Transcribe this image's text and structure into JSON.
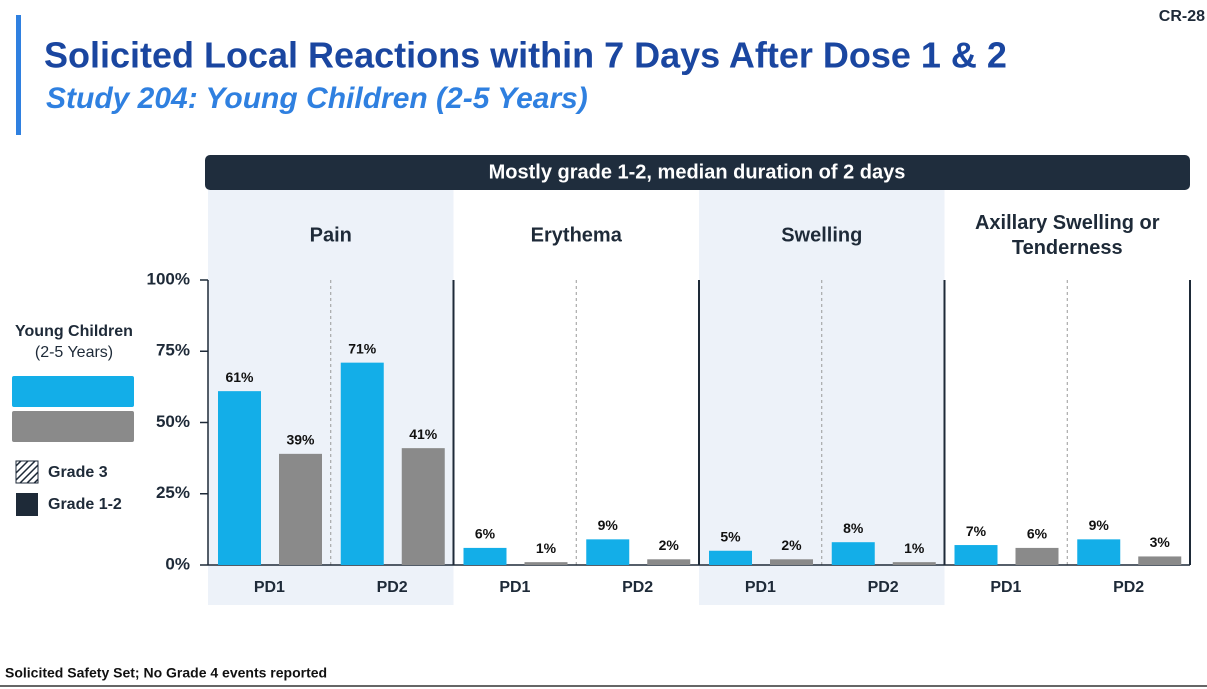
{
  "page_id": "CR-28",
  "header": {
    "title": "Solicited Local Reactions within 7 Days After Dose 1 & 2",
    "subtitle": "Study 204: Young Children (2-5 Years)"
  },
  "banner": "Mostly grade 1-2, median duration of 2 days",
  "chart_data": {
    "type": "bar",
    "panels": [
      "Pain",
      "Erythema",
      "Swelling",
      "Axillary Swelling or Tenderness"
    ],
    "categories": [
      "PD1",
      "PD2",
      "PD1",
      "PD2",
      "PD1",
      "PD2",
      "PD1",
      "PD2"
    ],
    "series": [
      {
        "color": "#13aee8",
        "values": [
          61,
          71,
          6,
          9,
          5,
          8,
          7,
          9
        ],
        "value_labels": [
          "61%",
          "71%",
          "6%",
          "9%",
          "5%",
          "8%",
          "7%",
          "9%"
        ]
      },
      {
        "color": "#8a8a8a",
        "values": [
          39,
          41,
          1,
          2,
          2,
          1,
          6,
          3
        ],
        "value_labels": [
          "39%",
          "41%",
          "1%",
          "2%",
          "2%",
          "1%",
          "6%",
          "3%"
        ]
      }
    ],
    "ylim": [
      0,
      100
    ],
    "yticks": [
      {
        "value": 0,
        "label": "0%"
      },
      {
        "value": 25,
        "label": "25%"
      },
      {
        "value": 50,
        "label": "50%"
      },
      {
        "value": 75,
        "label": "75%"
      },
      {
        "value": 100,
        "label": "100%"
      }
    ],
    "legend": {
      "title": [
        "Young Children",
        "(2-5 Years)"
      ],
      "grades": [
        "Grade 3",
        "Grade 1-2"
      ]
    }
  },
  "footnote": "Solicited Safety Set; No Grade 4 events reported"
}
